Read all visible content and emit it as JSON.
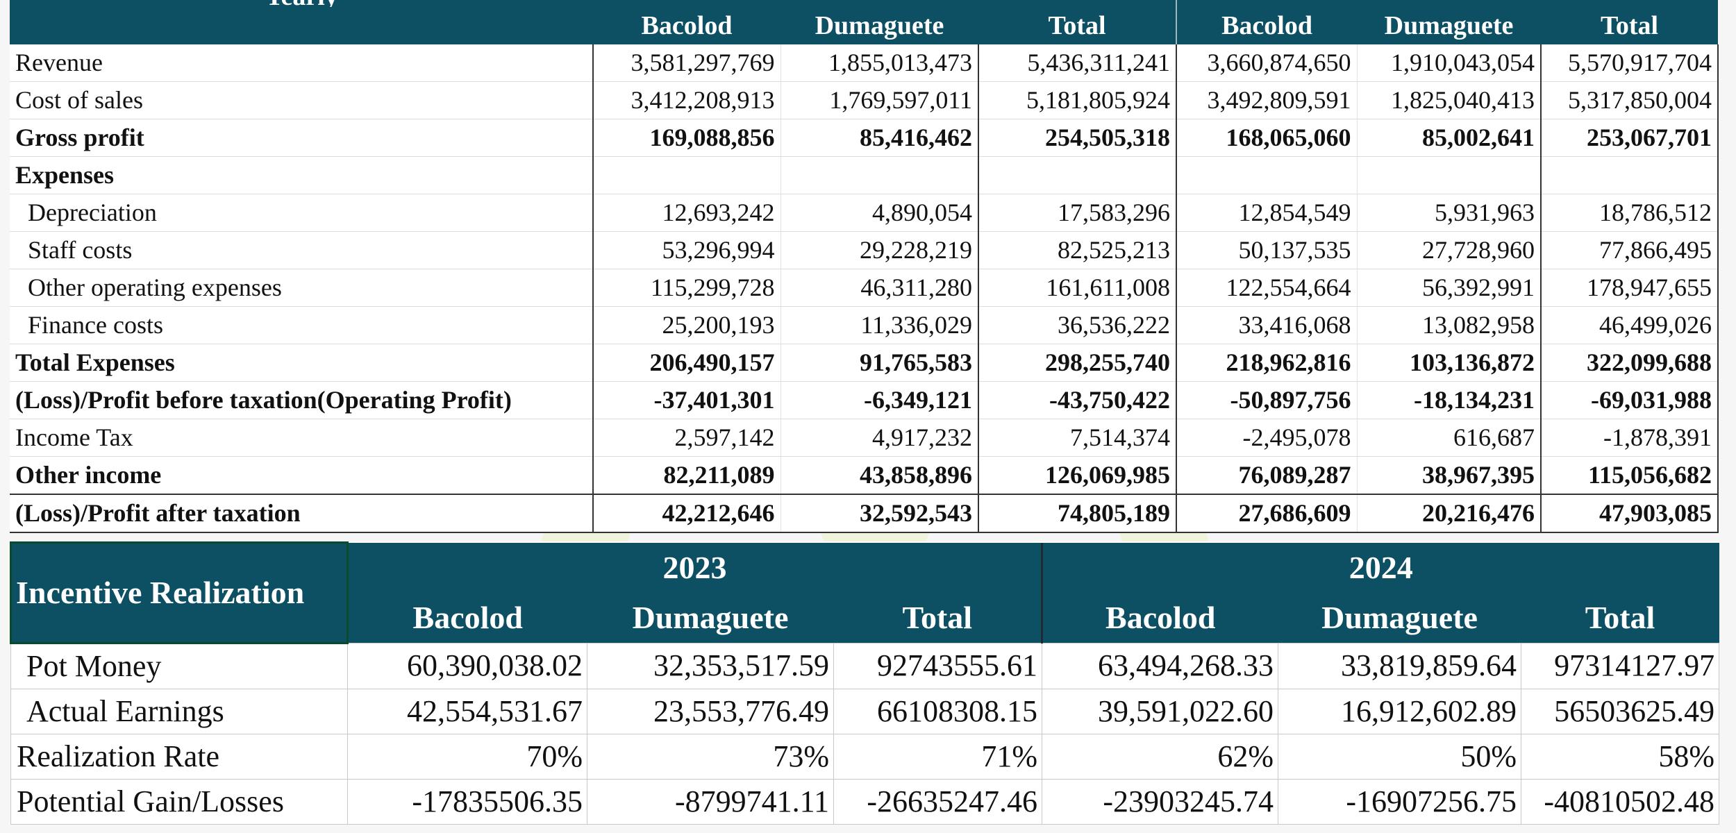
{
  "yearly": {
    "title": "Yearly",
    "columns": [
      "Bacolod",
      "Dumaguete",
      "Total",
      "Bacolod",
      "Dumaguete",
      "Total"
    ],
    "rows": [
      {
        "label": "Revenue",
        "values": [
          "3,581,297,769",
          "1,855,013,473",
          "5,436,311,241",
          "3,660,874,650",
          "1,910,043,054",
          "5,570,917,704"
        ]
      },
      {
        "label": "Cost of sales",
        "values": [
          "3,412,208,913",
          "1,769,597,011",
          "5,181,805,924",
          "3,492,809,591",
          "1,825,040,413",
          "5,317,850,004"
        ]
      },
      {
        "label": "Gross profit",
        "values": [
          "169,088,856",
          "85,416,462",
          "254,505,318",
          "168,065,060",
          "85,002,641",
          "253,067,701"
        ]
      },
      {
        "label": "Expenses",
        "values": [
          "",
          "",
          "",
          "",
          "",
          ""
        ]
      },
      {
        "label": "Depreciation",
        "values": [
          "12,693,242",
          "4,890,054",
          "17,583,296",
          "12,854,549",
          "5,931,963",
          "18,786,512"
        ]
      },
      {
        "label": "Staff costs",
        "values": [
          "53,296,994",
          "29,228,219",
          "82,525,213",
          "50,137,535",
          "27,728,960",
          "77,866,495"
        ]
      },
      {
        "label": "Other operating expenses",
        "values": [
          "115,299,728",
          "46,311,280",
          "161,611,008",
          "122,554,664",
          "56,392,991",
          "178,947,655"
        ]
      },
      {
        "label": "Finance costs",
        "values": [
          "25,200,193",
          "11,336,029",
          "36,536,222",
          "33,416,068",
          "13,082,958",
          "46,499,026"
        ]
      },
      {
        "label": "Total Expenses",
        "values": [
          "206,490,157",
          "91,765,583",
          "298,255,740",
          "218,962,816",
          "103,136,872",
          "322,099,688"
        ]
      },
      {
        "label": "(Loss)/Profit before taxation(Operating Profit)",
        "values": [
          "-37,401,301",
          "-6,349,121",
          "-43,750,422",
          "-50,897,756",
          "-18,134,231",
          "-69,031,988"
        ]
      },
      {
        "label": "Income Tax",
        "values": [
          "2,597,142",
          "4,917,232",
          "7,514,374",
          "-2,495,078",
          "616,687",
          "-1,878,391"
        ]
      },
      {
        "label": "Other income",
        "values": [
          "82,211,089",
          "43,858,896",
          "126,069,985",
          "76,089,287",
          "38,967,395",
          "115,056,682"
        ]
      },
      {
        "label": "(Loss)/Profit after taxation",
        "values": [
          "42,212,646",
          "32,592,543",
          "74,805,189",
          "27,686,609",
          "20,216,476",
          "47,903,085"
        ]
      }
    ]
  },
  "incentive": {
    "title": "Incentive Realization",
    "years": [
      "2023",
      "2024"
    ],
    "columns": [
      "Bacolod",
      "Dumaguete",
      "Total",
      "Bacolod",
      "Dumaguete",
      "Total"
    ],
    "rows": [
      {
        "label": "Pot Money",
        "values": [
          "60,390,038.02",
          "32,353,517.59",
          "92743555.61",
          "63,494,268.33",
          "33,819,859.64",
          "97314127.97"
        ]
      },
      {
        "label": "Actual Earnings",
        "values": [
          "42,554,531.67",
          "23,553,776.49",
          "66108308.15",
          "39,591,022.60",
          "16,912,602.89",
          "56503625.49"
        ]
      },
      {
        "label": "Realization Rate",
        "values": [
          "70%",
          "73%",
          "71%",
          "62%",
          "50%",
          "58%"
        ]
      },
      {
        "label": "Potential Gain/Losses",
        "values": [
          "-17835506.35",
          "-8799741.11",
          "-26635247.46",
          "-23903245.74",
          "-16907256.75",
          "-40810502.48"
        ]
      }
    ]
  },
  "colors": {
    "header_bg": "#0d4f63",
    "header_text": "#ffffff",
    "watermark": "#e6f0a0"
  }
}
